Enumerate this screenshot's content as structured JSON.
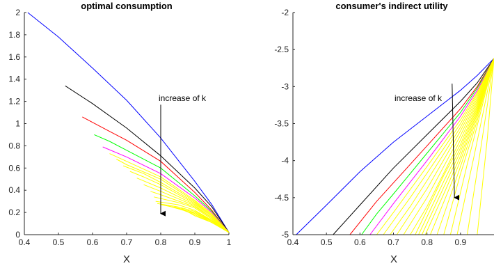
{
  "colors": {
    "axis": "#262626",
    "series_palette": [
      "#0000ff",
      "#000000",
      "#ff0000",
      "#00ff00",
      "#ff00ff",
      "#ffff00"
    ]
  },
  "chart_data": [
    {
      "type": "line",
      "title": "optimal consumption",
      "xlabel": "X",
      "ylabel": "",
      "xlim": [
        0.4,
        1.0
      ],
      "ylim": [
        0,
        2
      ],
      "xticks": [
        0.4,
        0.5,
        0.6,
        0.7,
        0.8,
        0.9,
        1
      ],
      "xtick_labels": [
        "0.4",
        "0.5",
        "0.6",
        "0.7",
        "0.8",
        "0.9",
        "1"
      ],
      "yticks": [
        0,
        0.2,
        0.4,
        0.6,
        0.8,
        1,
        1.2,
        1.4,
        1.6,
        1.8,
        2
      ],
      "ytick_labels": [
        "0",
        "0.2",
        "0.4",
        "0.6",
        "0.8",
        "1",
        "1.2",
        "1.4",
        "1.6",
        "1.8",
        "2"
      ],
      "grid": false,
      "annotation": {
        "text": "increase of k",
        "arrow": {
          "x": 0.8,
          "y_from": 1.17,
          "y_to": 0.19
        }
      },
      "series": [
        {
          "color": "#0000ff",
          "x": [
            0.41,
            0.5,
            0.6,
            0.7,
            0.8,
            0.9,
            0.95,
            1.0
          ],
          "y": [
            2.0,
            1.78,
            1.5,
            1.21,
            0.87,
            0.48,
            0.27,
            0.02
          ]
        },
        {
          "color": "#000000",
          "x": [
            0.52,
            0.6,
            0.7,
            0.8,
            0.9,
            0.95,
            1.0
          ],
          "y": [
            1.34,
            1.18,
            0.96,
            0.71,
            0.42,
            0.25,
            0.02
          ]
        },
        {
          "color": "#ff0000",
          "x": [
            0.57,
            0.65,
            0.7,
            0.8,
            0.9,
            0.95,
            1.0
          ],
          "y": [
            1.06,
            0.93,
            0.85,
            0.66,
            0.38,
            0.22,
            0.02
          ]
        },
        {
          "color": "#00ff00",
          "x": [
            0.605,
            0.65,
            0.7,
            0.8,
            0.9,
            0.95,
            1.0
          ],
          "y": [
            0.9,
            0.84,
            0.76,
            0.6,
            0.35,
            0.21,
            0.02
          ]
        },
        {
          "color": "#ff00ff",
          "x": [
            0.63,
            0.7,
            0.8,
            0.9,
            0.95,
            1.0
          ],
          "y": [
            0.79,
            0.7,
            0.55,
            0.33,
            0.2,
            0.02
          ]
        },
        {
          "color": "#ffff00",
          "x": [
            0.65,
            0.7,
            0.8,
            0.9,
            0.95,
            1.0
          ],
          "y": [
            0.73,
            0.66,
            0.52,
            0.31,
            0.19,
            0.02
          ]
        },
        {
          "color": "#ffff00",
          "x": [
            0.67,
            0.7,
            0.8,
            0.9,
            0.95,
            1.0
          ],
          "y": [
            0.68,
            0.63,
            0.5,
            0.3,
            0.18,
            0.02
          ]
        },
        {
          "color": "#ffff00",
          "x": [
            0.69,
            0.75,
            0.8,
            0.9,
            0.95,
            1.0
          ],
          "y": [
            0.62,
            0.55,
            0.47,
            0.29,
            0.17,
            0.02
          ]
        },
        {
          "color": "#ffff00",
          "x": [
            0.71,
            0.75,
            0.8,
            0.9,
            0.95,
            1.0
          ],
          "y": [
            0.57,
            0.52,
            0.45,
            0.28,
            0.17,
            0.02
          ]
        },
        {
          "color": "#ffff00",
          "x": [
            0.73,
            0.8,
            0.9,
            0.95,
            1.0
          ],
          "y": [
            0.51,
            0.42,
            0.27,
            0.16,
            0.02
          ]
        },
        {
          "color": "#ffff00",
          "x": [
            0.75,
            0.8,
            0.9,
            0.95,
            1.0
          ],
          "y": [
            0.45,
            0.39,
            0.26,
            0.15,
            0.02
          ]
        },
        {
          "color": "#ffff00",
          "x": [
            0.77,
            0.8,
            0.9,
            0.95,
            1.0
          ],
          "y": [
            0.39,
            0.36,
            0.25,
            0.15,
            0.02
          ]
        },
        {
          "color": "#ffff00",
          "x": [
            0.78,
            0.85,
            0.9,
            0.95,
            1.0
          ],
          "y": [
            0.34,
            0.29,
            0.24,
            0.14,
            0.02
          ]
        },
        {
          "color": "#ffff00",
          "x": [
            0.785,
            0.85,
            0.9,
            0.95,
            1.0
          ],
          "y": [
            0.3,
            0.27,
            0.22,
            0.13,
            0.02
          ]
        },
        {
          "color": "#ffff00",
          "x": [
            0.79,
            0.85,
            0.9,
            0.95,
            1.0
          ],
          "y": [
            0.28,
            0.25,
            0.21,
            0.13,
            0.02
          ]
        },
        {
          "color": "#ffff00",
          "x": [
            0.8,
            0.85,
            0.9,
            0.95,
            1.0
          ],
          "y": [
            0.27,
            0.24,
            0.2,
            0.12,
            0.02
          ]
        },
        {
          "color": "#ffff00",
          "x": [
            0.82,
            0.9,
            0.95,
            1.0
          ],
          "y": [
            0.26,
            0.19,
            0.12,
            0.02
          ]
        },
        {
          "color": "#ffff00",
          "x": [
            0.84,
            0.9,
            0.95,
            1.0
          ],
          "y": [
            0.25,
            0.18,
            0.11,
            0.02
          ]
        },
        {
          "color": "#ffff00",
          "x": [
            0.86,
            0.9,
            0.95,
            1.0
          ],
          "y": [
            0.24,
            0.17,
            0.11,
            0.02
          ]
        },
        {
          "color": "#ffff00",
          "x": [
            0.88,
            0.92,
            0.96,
            1.0
          ],
          "y": [
            0.22,
            0.16,
            0.09,
            0.02
          ]
        },
        {
          "color": "#ffff00",
          "x": [
            0.9,
            0.94,
            0.97,
            1.0
          ],
          "y": [
            0.2,
            0.14,
            0.08,
            0.02
          ]
        },
        {
          "color": "#ffff00",
          "x": [
            0.92,
            0.96,
            1.0
          ],
          "y": [
            0.18,
            0.1,
            0.02
          ]
        }
      ]
    },
    {
      "type": "line",
      "title": "consumer's indirect utility",
      "xlabel": "X",
      "ylabel": "",
      "xlim": [
        0.4,
        1.0
      ],
      "ylim": [
        -5,
        -2
      ],
      "xticks": [
        0.4,
        0.5,
        0.6,
        0.7,
        0.8,
        0.9
      ],
      "xtick_labels": [
        "0.4",
        "0.5",
        "0.6",
        "0.7",
        "0.8",
        "0.9"
      ],
      "yticks": [
        -5,
        -4.5,
        -4,
        -3.5,
        -3,
        -2.5,
        -2
      ],
      "ytick_labels": [
        "-5",
        "-4.5",
        "-4",
        "-3.5",
        "-3",
        "-2.5",
        "-2"
      ],
      "grid": false,
      "annotation": {
        "text": "increase of k",
        "arrow": {
          "x_from": 0.875,
          "y_from": -2.96,
          "x_to": 0.882,
          "y_to": -4.5
        }
      },
      "series": [
        {
          "color": "#0000ff",
          "x": [
            0.41,
            0.5,
            0.6,
            0.7,
            0.8,
            0.9,
            0.95,
            1.0
          ],
          "y": [
            -5.0,
            -4.6,
            -4.15,
            -3.75,
            -3.4,
            -3.05,
            -2.85,
            -2.62
          ]
        },
        {
          "color": "#000000",
          "x": [
            0.52,
            0.6,
            0.7,
            0.8,
            0.9,
            0.95,
            1.0
          ],
          "y": [
            -5.0,
            -4.6,
            -4.1,
            -3.65,
            -3.2,
            -2.95,
            -2.62
          ]
        },
        {
          "color": "#ff0000",
          "x": [
            0.57,
            0.65,
            0.7,
            0.8,
            0.9,
            0.95,
            1.0
          ],
          "y": [
            -5.0,
            -4.55,
            -4.3,
            -3.8,
            -3.3,
            -3.0,
            -2.62
          ]
        },
        {
          "color": "#00ff00",
          "x": [
            0.605,
            0.65,
            0.7,
            0.8,
            0.9,
            0.95,
            1.0
          ],
          "y": [
            -5.0,
            -4.72,
            -4.45,
            -3.9,
            -3.35,
            -3.02,
            -2.62
          ]
        },
        {
          "color": "#ff00ff",
          "x": [
            0.63,
            0.7,
            0.8,
            0.9,
            0.95,
            1.0
          ],
          "y": [
            -5.0,
            -4.58,
            -4.0,
            -3.4,
            -3.05,
            -2.62
          ]
        },
        {
          "color": "#ffff00",
          "x": [
            0.65,
            0.7,
            0.8,
            0.9,
            0.95,
            1.0
          ],
          "y": [
            -5.0,
            -4.7,
            -4.08,
            -3.45,
            -3.08,
            -2.62
          ]
        },
        {
          "color": "#ffff00",
          "x": [
            0.67,
            0.75,
            0.8,
            0.9,
            0.95,
            1.0
          ],
          "y": [
            -5.0,
            -4.5,
            -4.17,
            -3.5,
            -3.1,
            -2.62
          ]
        },
        {
          "color": "#ffff00",
          "x": [
            0.69,
            0.75,
            0.8,
            0.9,
            0.95,
            1.0
          ],
          "y": [
            -5.0,
            -4.62,
            -4.27,
            -3.55,
            -3.13,
            -2.62
          ]
        },
        {
          "color": "#ffff00",
          "x": [
            0.71,
            0.8,
            0.9,
            0.95,
            1.0
          ],
          "y": [
            -5.0,
            -4.38,
            -3.6,
            -3.16,
            -2.62
          ]
        },
        {
          "color": "#ffff00",
          "x": [
            0.73,
            0.8,
            0.9,
            0.95,
            1.0
          ],
          "y": [
            -5.0,
            -4.5,
            -3.66,
            -3.19,
            -2.62
          ]
        },
        {
          "color": "#ffff00",
          "x": [
            0.75,
            0.8,
            0.9,
            0.95,
            1.0
          ],
          "y": [
            -5.0,
            -4.62,
            -3.72,
            -3.22,
            -2.62
          ]
        },
        {
          "color": "#ffff00",
          "x": [
            0.765,
            0.85,
            0.9,
            0.95,
            1.0
          ],
          "y": [
            -5.0,
            -4.2,
            -3.78,
            -3.25,
            -2.62
          ]
        },
        {
          "color": "#ffff00",
          "x": [
            0.775,
            0.85,
            0.9,
            0.95,
            1.0
          ],
          "y": [
            -5.0,
            -4.28,
            -3.83,
            -3.28,
            -2.62
          ]
        },
        {
          "color": "#ffff00",
          "x": [
            0.785,
            0.85,
            0.9,
            0.95,
            1.0
          ],
          "y": [
            -5.0,
            -4.36,
            -3.88,
            -3.31,
            -2.62
          ]
        },
        {
          "color": "#ffff00",
          "x": [
            0.795,
            0.85,
            0.9,
            0.95,
            1.0
          ],
          "y": [
            -5.0,
            -4.45,
            -3.94,
            -3.34,
            -2.62
          ]
        },
        {
          "color": "#ffff00",
          "x": [
            0.81,
            0.85,
            0.9,
            0.95,
            1.0
          ],
          "y": [
            -5.0,
            -4.56,
            -4.0,
            -3.37,
            -2.62
          ]
        },
        {
          "color": "#ffff00",
          "x": [
            0.83,
            0.9,
            0.95,
            1.0
          ],
          "y": [
            -5.0,
            -4.08,
            -3.41,
            -2.62
          ]
        },
        {
          "color": "#ffff00",
          "x": [
            0.85,
            0.9,
            0.95,
            1.0
          ],
          "y": [
            -5.0,
            -4.18,
            -3.46,
            -2.62
          ]
        },
        {
          "color": "#ffff00",
          "x": [
            0.87,
            0.92,
            0.96,
            1.0
          ],
          "y": [
            -5.0,
            -4.05,
            -3.35,
            -2.62
          ]
        },
        {
          "color": "#ffff00",
          "x": [
            0.89,
            0.94,
            0.97,
            1.0
          ],
          "y": [
            -5.0,
            -3.95,
            -3.3,
            -2.62
          ]
        },
        {
          "color": "#ffff00",
          "x": [
            0.92,
            0.96,
            0.98,
            1.0
          ],
          "y": [
            -5.0,
            -3.85,
            -3.25,
            -2.62
          ]
        },
        {
          "color": "#ffff00",
          "x": [
            0.95,
            0.98,
            1.0
          ],
          "y": [
            -5.0,
            -3.7,
            -2.62
          ]
        }
      ]
    }
  ]
}
